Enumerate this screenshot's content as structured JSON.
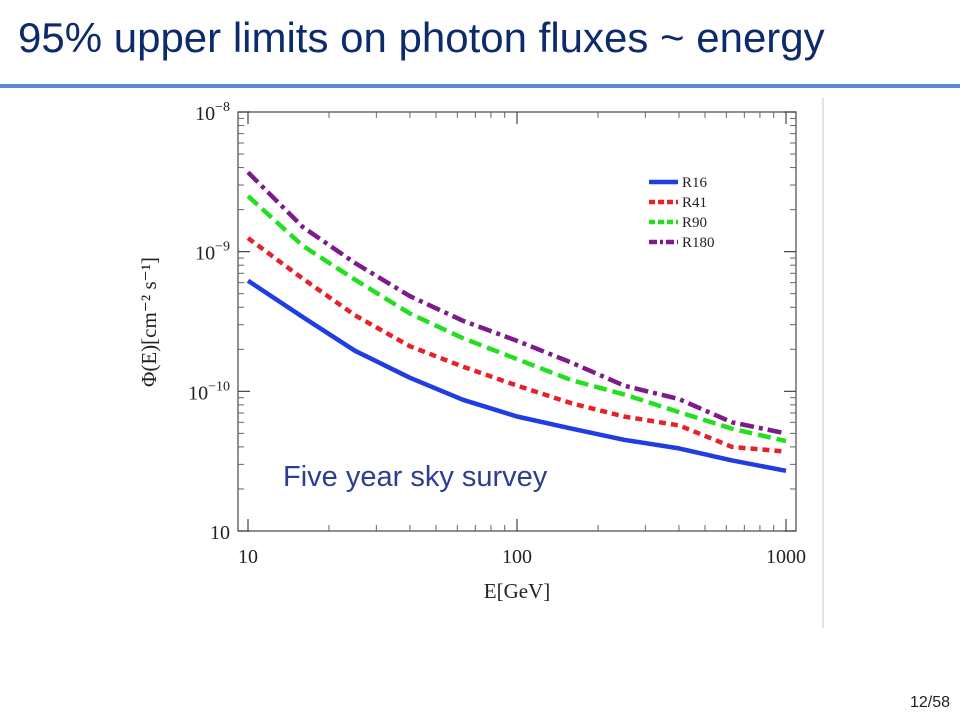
{
  "slide": {
    "title": "95% upper limits on photon fluxes ~ energy",
    "page_number": "12/58"
  },
  "chart_data": {
    "type": "line",
    "xlabel": "E[GeV]",
    "ylabel": "Φ(E)[cm⁻² s⁻¹]",
    "x_scale": "log",
    "y_scale": "log",
    "xlim": [
      10,
      1000
    ],
    "ylim": [
      1e-11,
      1e-08
    ],
    "x_ticks": [
      {
        "value": 10,
        "label": "10"
      },
      {
        "value": 100,
        "label": "100"
      },
      {
        "value": 1000,
        "label": "1000"
      }
    ],
    "y_ticks": [
      {
        "value": 1e-11,
        "base": "10",
        "exp": ""
      },
      {
        "value": 1e-10,
        "base": "10",
        "exp": "−10"
      },
      {
        "value": 1e-09,
        "base": "10",
        "exp": "−9"
      },
      {
        "value": 1e-08,
        "base": "10",
        "exp": "−8"
      }
    ],
    "legend_position": "top-right",
    "annotation": "Five year sky survey",
    "series": [
      {
        "name": "R16",
        "color": "#1f3de0",
        "dash": "solid",
        "x": [
          10,
          16,
          25,
          40,
          63,
          100,
          160,
          250,
          400,
          630,
          1000
        ],
        "y": [
          6.2e-10,
          3.4e-10,
          1.95e-10,
          1.25e-10,
          8.7e-11,
          6.6e-11,
          5.4e-11,
          4.5e-11,
          3.9e-11,
          3.2e-11,
          2.7e-11
        ]
      },
      {
        "name": "R41",
        "color": "#e8202a",
        "dash": "dash-short",
        "x": [
          10,
          16,
          25,
          40,
          63,
          100,
          160,
          250,
          400,
          630,
          1000
        ],
        "y": [
          1.25e-09,
          6.4e-10,
          3.5e-10,
          2.1e-10,
          1.5e-10,
          1.1e-10,
          8.2e-11,
          6.6e-11,
          5.7e-11,
          4e-11,
          3.7e-11
        ]
      },
      {
        "name": "R90",
        "color": "#22e01e",
        "dash": "dash-long",
        "x": [
          10,
          16,
          25,
          40,
          63,
          100,
          160,
          250,
          400,
          630,
          1000
        ],
        "y": [
          2.5e-09,
          1.1e-09,
          6.3e-10,
          3.6e-10,
          2.4e-10,
          1.7e-10,
          1.2e-10,
          9.5e-11,
          7.1e-11,
          5.4e-11,
          4.4e-11
        ]
      },
      {
        "name": "R180",
        "color": "#7d1a8c",
        "dash": "dash-dot",
        "x": [
          10,
          16,
          25,
          40,
          63,
          100,
          160,
          250,
          400,
          630,
          1000
        ],
        "y": [
          3.7e-09,
          1.5e-09,
          8.3e-10,
          4.8e-10,
          3.2e-10,
          2.3e-10,
          1.6e-10,
          1.1e-10,
          8.8e-11,
          6e-11,
          5e-11
        ]
      }
    ]
  }
}
